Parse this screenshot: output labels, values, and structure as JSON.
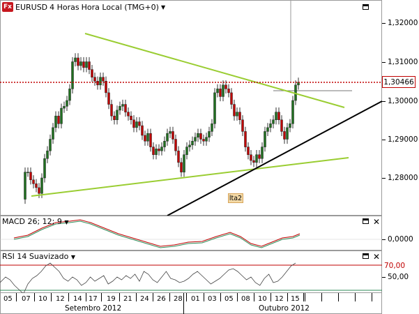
{
  "chart_title": {
    "symbol": "EURUSD",
    "timeframe": "4 Horas",
    "timezone": "Hora Local (TMG+0)"
  },
  "current_price_label": "1,30466",
  "price_axis": {
    "labels": [
      "1,32000",
      "1,31000",
      "1,30000",
      "1,29000",
      "1,28000"
    ]
  },
  "annotation_label": "lta2",
  "macd": {
    "title": "MACD 26; 12; 9",
    "axis_label": "0,0000"
  },
  "rsi": {
    "title": "RSI 14 Suavizado",
    "level_label": "70,00",
    "axis_label": "50,00"
  },
  "x_axis": {
    "days": [
      "05",
      "07",
      "10",
      "12",
      "14",
      "17",
      "19",
      "21",
      "24",
      "26",
      "28",
      "01",
      "03",
      "05",
      "08",
      "10",
      "12",
      "15"
    ],
    "months": [
      "Setembro 2012",
      "Outubro 2012"
    ]
  },
  "colors": {
    "bullish": "#207020",
    "bearish": "#c00000",
    "trendline_green": "#9acd32",
    "trendline_black": "#000000",
    "macd_line": "#c00000",
    "macd_signal": "#2e8b57",
    "rsi_line": "#444444",
    "rsi_level": "#c00000",
    "price_line": "#c00000"
  },
  "icons": {
    "app": "fx-icon",
    "maximize": "maximize-icon",
    "close": "close-icon",
    "dropdown": "chevron-down-icon"
  }
}
